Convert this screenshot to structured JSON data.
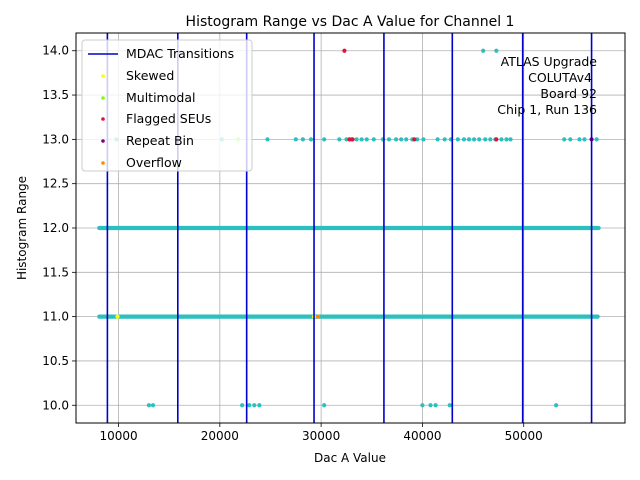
{
  "chart_data": {
    "type": "scatter",
    "title": "Histogram Range vs Dac A Value for Channel 1",
    "xlabel": "Dac A Value",
    "ylabel": "Histogram Range",
    "xlim": [
      5800,
      60000
    ],
    "ylim": [
      9.8,
      14.2
    ],
    "xticks": [
      10000,
      20000,
      30000,
      40000,
      50000
    ],
    "xtick_labels": [
      "10000",
      "20000",
      "30000",
      "40000",
      "50000"
    ],
    "yticks": [
      10.0,
      10.5,
      11.0,
      11.5,
      12.0,
      12.5,
      13.0,
      13.5,
      14.0
    ],
    "ytick_labels": [
      "10.0",
      "10.5",
      "11.0",
      "11.5",
      "12.0",
      "12.5",
      "13.0",
      "13.5",
      "14.0"
    ],
    "grid": true,
    "legend_position": "top-left",
    "annotation": [
      "ATLAS Upgrade",
      "COLUTAv4",
      "Board 92",
      "Chip 1, Run 136"
    ],
    "mdac_transitions": {
      "name": "MDAC Transitions",
      "color": "#0000cc",
      "x": [
        8900,
        15850,
        22650,
        29300,
        36200,
        42950,
        49900,
        56700
      ]
    },
    "series": [
      {
        "name": "data",
        "color": "#2bbfbf",
        "segments": [
          {
            "y": 12.0,
            "x_start": 8100,
            "x_end": 57400
          },
          {
            "y": 11.0,
            "x_start": 8100,
            "x_end": 57300
          }
        ],
        "points": [
          {
            "x": 13000,
            "y": 10.0
          },
          {
            "x": 13400,
            "y": 10.0
          },
          {
            "x": 22200,
            "y": 10.0
          },
          {
            "x": 22900,
            "y": 10.0
          },
          {
            "x": 23400,
            "y": 10.0
          },
          {
            "x": 23900,
            "y": 10.0
          },
          {
            "x": 30300,
            "y": 10.0
          },
          {
            "x": 40000,
            "y": 10.0
          },
          {
            "x": 40800,
            "y": 10.0
          },
          {
            "x": 41300,
            "y": 10.0
          },
          {
            "x": 42700,
            "y": 10.0
          },
          {
            "x": 53200,
            "y": 10.0
          },
          {
            "x": 9800,
            "y": 13.0
          },
          {
            "x": 20200,
            "y": 13.0
          },
          {
            "x": 24700,
            "y": 13.0
          },
          {
            "x": 27500,
            "y": 13.0
          },
          {
            "x": 28200,
            "y": 13.0
          },
          {
            "x": 29000,
            "y": 13.0
          },
          {
            "x": 30300,
            "y": 13.0
          },
          {
            "x": 31800,
            "y": 13.0
          },
          {
            "x": 32500,
            "y": 13.0
          },
          {
            "x": 33000,
            "y": 13.0
          },
          {
            "x": 33500,
            "y": 13.0
          },
          {
            "x": 34000,
            "y": 13.0
          },
          {
            "x": 34500,
            "y": 13.0
          },
          {
            "x": 35200,
            "y": 13.0
          },
          {
            "x": 36100,
            "y": 13.0
          },
          {
            "x": 36700,
            "y": 13.0
          },
          {
            "x": 37400,
            "y": 13.0
          },
          {
            "x": 37900,
            "y": 13.0
          },
          {
            "x": 38400,
            "y": 13.0
          },
          {
            "x": 39000,
            "y": 13.0
          },
          {
            "x": 39500,
            "y": 13.0
          },
          {
            "x": 40100,
            "y": 13.0
          },
          {
            "x": 41500,
            "y": 13.0
          },
          {
            "x": 42200,
            "y": 13.0
          },
          {
            "x": 42800,
            "y": 13.0
          },
          {
            "x": 43500,
            "y": 13.0
          },
          {
            "x": 44100,
            "y": 13.0
          },
          {
            "x": 44600,
            "y": 13.0
          },
          {
            "x": 45100,
            "y": 13.0
          },
          {
            "x": 45600,
            "y": 13.0
          },
          {
            "x": 46200,
            "y": 13.0
          },
          {
            "x": 46700,
            "y": 13.0
          },
          {
            "x": 47200,
            "y": 13.0
          },
          {
            "x": 47800,
            "y": 13.0
          },
          {
            "x": 48300,
            "y": 13.0
          },
          {
            "x": 48700,
            "y": 13.0
          },
          {
            "x": 54000,
            "y": 13.0
          },
          {
            "x": 54600,
            "y": 13.0
          },
          {
            "x": 55500,
            "y": 13.0
          },
          {
            "x": 56000,
            "y": 13.0
          },
          {
            "x": 57200,
            "y": 13.0
          },
          {
            "x": 46000,
            "y": 14.0
          },
          {
            "x": 47300,
            "y": 14.0
          }
        ]
      },
      {
        "name": "Skewed",
        "color": "#ffff00",
        "points": [
          {
            "x": 9900,
            "y": 11.0
          },
          {
            "x": 29300,
            "y": 11.0
          }
        ]
      },
      {
        "name": "Multimodal",
        "color": "#7fff00",
        "points": [
          {
            "x": 21800,
            "y": 13.0
          }
        ]
      },
      {
        "name": "Flagged SEUs",
        "color": "#dc143c",
        "points": [
          {
            "x": 32300,
            "y": 14.0
          },
          {
            "x": 32800,
            "y": 13.0
          },
          {
            "x": 33100,
            "y": 13.0
          },
          {
            "x": 39200,
            "y": 13.0
          },
          {
            "x": 47300,
            "y": 13.0
          }
        ]
      },
      {
        "name": "Repeat Bin",
        "color": "#800080",
        "points": [
          {
            "x": 56700,
            "y": 13.0
          }
        ]
      },
      {
        "name": "Overflow",
        "color": "#ff8c00",
        "points": [
          {
            "x": 29700,
            "y": 11.0
          }
        ]
      }
    ]
  }
}
